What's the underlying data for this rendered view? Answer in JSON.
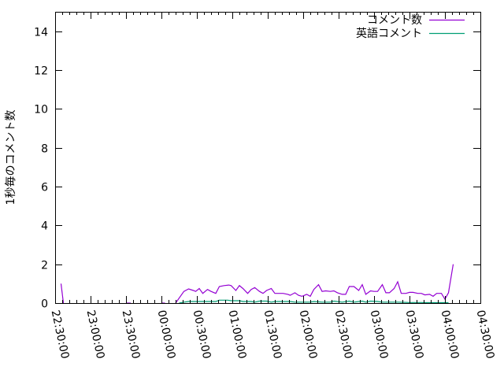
{
  "chart_data": {
    "type": "line",
    "title": "",
    "xlabel": "",
    "ylabel": "1秒毎のコメント数",
    "xlim": [
      "22:30:00",
      "04:30:00"
    ],
    "ylim": [
      0,
      15
    ],
    "x_ticks": [
      "22:30:00",
      "23:00:00",
      "23:30:00",
      "00:00:00",
      "00:30:00",
      "01:00:00",
      "01:30:00",
      "02:00:00",
      "02:30:00",
      "03:00:00",
      "03:30:00",
      "04:00:00",
      "04:30:00"
    ],
    "y_ticks": [
      "0",
      "2",
      "4",
      "6",
      "8",
      "10",
      "12",
      "14"
    ],
    "grid": false,
    "legend_position": "top-right",
    "series": [
      {
        "name": "コメント数",
        "color": "#9400d3",
        "points": [
          [
            "22:35",
            1.0
          ],
          [
            "22:37",
            0
          ],
          null,
          [
            "23:30",
            0
          ],
          [
            "23:34",
            0
          ],
          null,
          [
            "00:00",
            0
          ],
          [
            "00:03",
            0
          ],
          null,
          [
            "00:12",
            0
          ],
          [
            "00:19",
            0.6
          ],
          [
            "00:23",
            0.73
          ],
          [
            "00:27",
            0.65
          ],
          [
            "00:29",
            0.6
          ],
          [
            "00:32",
            0.75
          ],
          [
            "00:35",
            0.5
          ],
          [
            "00:39",
            0.7
          ],
          [
            "00:42",
            0.6
          ],
          [
            "00:46",
            0.5
          ],
          [
            "00:49",
            0.85
          ],
          [
            "00:53",
            0.9
          ],
          [
            "00:57",
            0.93
          ],
          [
            "00:59",
            0.9
          ],
          [
            "01:03",
            0.65
          ],
          [
            "01:06",
            0.9
          ],
          [
            "01:09",
            0.75
          ],
          [
            "01:13",
            0.5
          ],
          [
            "01:16",
            0.7
          ],
          [
            "01:19",
            0.8
          ],
          [
            "01:23",
            0.6
          ],
          [
            "01:26",
            0.5
          ],
          [
            "01:29",
            0.65
          ],
          [
            "01:33",
            0.75
          ],
          [
            "01:36",
            0.5
          ],
          [
            "01:43",
            0.5
          ],
          [
            "01:47",
            0.45
          ],
          [
            "01:49",
            0.4
          ],
          [
            "01:53",
            0.53
          ],
          [
            "01:56",
            0.4
          ],
          [
            "01:59",
            0.35
          ],
          [
            "02:03",
            0.45
          ],
          [
            "02:06",
            0.35
          ],
          [
            "02:09",
            0.7
          ],
          [
            "02:13",
            0.95
          ],
          [
            "02:16",
            0.6
          ],
          [
            "02:19",
            0.63
          ],
          [
            "02:23",
            0.6
          ],
          [
            "02:26",
            0.63
          ],
          [
            "02:29",
            0.53
          ],
          [
            "02:33",
            0.45
          ],
          [
            "02:36",
            0.45
          ],
          [
            "02:39",
            0.85
          ],
          [
            "02:43",
            0.85
          ],
          [
            "02:47",
            0.65
          ],
          [
            "02:50",
            0.95
          ],
          [
            "02:53",
            0.45
          ],
          [
            "02:57",
            0.63
          ],
          [
            "03:00",
            0.6
          ],
          [
            "03:03",
            0.6
          ],
          [
            "03:07",
            0.95
          ],
          [
            "03:10",
            0.53
          ],
          [
            "03:13",
            0.53
          ],
          [
            "03:17",
            0.75
          ],
          [
            "03:20",
            1.1
          ],
          [
            "03:23",
            0.5
          ],
          [
            "03:27",
            0.5
          ],
          [
            "03:30",
            0.55
          ],
          [
            "03:33",
            0.55
          ],
          [
            "03:37",
            0.5
          ],
          [
            "03:40",
            0.5
          ],
          [
            "03:43",
            0.42
          ],
          [
            "03:47",
            0.45
          ],
          [
            "03:50",
            0.35
          ],
          [
            "03:53",
            0.5
          ],
          [
            "03:57",
            0.5
          ],
          [
            "04:00",
            0.2
          ],
          [
            "04:03",
            0.53
          ],
          [
            "04:07",
            2.0
          ]
        ]
      },
      {
        "name": "英語コメント",
        "color": "#009e73",
        "points": [
          [
            "00:15",
            0
          ],
          [
            "00:19",
            0.05
          ],
          [
            "00:23",
            0.08
          ],
          [
            "00:33",
            0.08
          ],
          [
            "00:39",
            0.08
          ],
          [
            "00:46",
            0.08
          ],
          [
            "00:49",
            0.15
          ],
          [
            "00:56",
            0.15
          ],
          [
            "00:59",
            0.12
          ],
          [
            "01:06",
            0.12
          ],
          [
            "01:09",
            0.08
          ],
          [
            "01:16",
            0.08
          ],
          [
            "01:19",
            0.05
          ],
          [
            "01:23",
            0.1
          ],
          [
            "01:29",
            0.1
          ],
          [
            "01:33",
            0.05
          ],
          [
            "01:36",
            0.08
          ],
          [
            "01:49",
            0.08
          ],
          [
            "01:53",
            0.05
          ],
          [
            "02:06",
            0.05
          ],
          [
            "02:09",
            0.08
          ],
          [
            "02:16",
            0.05
          ],
          [
            "02:23",
            0.05
          ],
          [
            "02:26",
            0.1
          ],
          [
            "02:33",
            0.05
          ],
          [
            "02:39",
            0.1
          ],
          [
            "02:43",
            0.05
          ],
          [
            "02:50",
            0.1
          ],
          [
            "02:53",
            0.05
          ],
          [
            "02:57",
            0.1
          ],
          [
            "03:03",
            0.08
          ],
          [
            "03:07",
            0.05
          ],
          [
            "03:17",
            0.05
          ],
          [
            "03:20",
            0.05
          ],
          [
            "03:30",
            0.03
          ],
          [
            "03:40",
            0.03
          ],
          [
            "03:47",
            0.02
          ],
          [
            "03:57",
            0.02
          ],
          [
            "04:03",
            0.02
          ]
        ]
      }
    ]
  }
}
